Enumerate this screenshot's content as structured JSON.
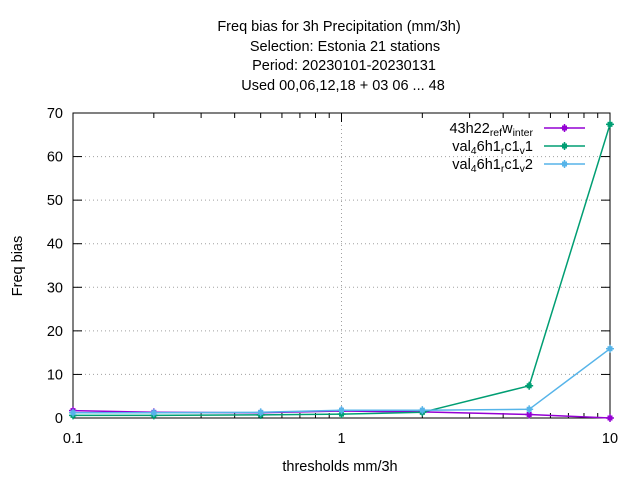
{
  "chart_data": {
    "type": "line",
    "title_lines": [
      "Freq bias  for 3h Precipitation (mm/3h)",
      "Selection: Estonia      21 stations",
      "Period: 20230101-20230131",
      "Used  00,06,12,18  + 03 06 ... 48"
    ],
    "xlabel": "thresholds mm/3h",
    "ylabel": "Freq bias",
    "x_scale": "log",
    "xlim": [
      0.1,
      10
    ],
    "ylim": [
      0,
      70
    ],
    "x_ticks": [
      0.1,
      1,
      10
    ],
    "x_tick_labels": [
      "0.1",
      "1",
      "10"
    ],
    "x_minor_ticks": [
      0.2,
      0.3,
      0.4,
      0.5,
      0.6,
      0.7,
      0.8,
      0.9,
      2,
      3,
      4,
      5,
      6,
      7,
      8,
      9
    ],
    "y_ticks": [
      0,
      10,
      20,
      30,
      40,
      50,
      60,
      70
    ],
    "y_tick_labels": [
      "0",
      "10",
      "20",
      "30",
      "40",
      "50",
      "60",
      "70"
    ],
    "grid": true,
    "legend_position": "top-right",
    "series": [
      {
        "legend_parts": [
          [
            "43h22",
            "n"
          ],
          [
            "ref",
            "s"
          ],
          [
            "w",
            "n"
          ],
          [
            "inter",
            "s"
          ]
        ],
        "color": "#9400d3",
        "x": [
          0.1,
          0.2,
          0.5,
          1,
          2,
          5,
          10
        ],
        "y": [
          1.7,
          1.3,
          1.2,
          1.6,
          1.4,
          0.8,
          0.0
        ]
      },
      {
        "legend_parts": [
          [
            "val",
            "n"
          ],
          [
            "4",
            "s"
          ],
          [
            "6h1",
            "n"
          ],
          [
            "r",
            "s"
          ],
          [
            "c1",
            "n"
          ],
          [
            "v",
            "s"
          ],
          [
            "1",
            "n"
          ]
        ],
        "color": "#009e73",
        "x": [
          0.1,
          0.2,
          0.5,
          1,
          2,
          5,
          10
        ],
        "y": [
          0.6,
          0.6,
          0.7,
          0.9,
          1.3,
          7.4,
          67.4
        ]
      },
      {
        "legend_parts": [
          [
            "val",
            "n"
          ],
          [
            "4",
            "s"
          ],
          [
            "6h1",
            "n"
          ],
          [
            "r",
            "s"
          ],
          [
            "c1",
            "n"
          ],
          [
            "v",
            "s"
          ],
          [
            "2",
            "n"
          ]
        ],
        "color": "#56b4e9",
        "x": [
          0.1,
          0.2,
          0.5,
          1,
          2,
          5,
          10
        ],
        "y": [
          1.2,
          1.2,
          1.3,
          1.8,
          1.8,
          2.0,
          15.9
        ]
      }
    ]
  }
}
